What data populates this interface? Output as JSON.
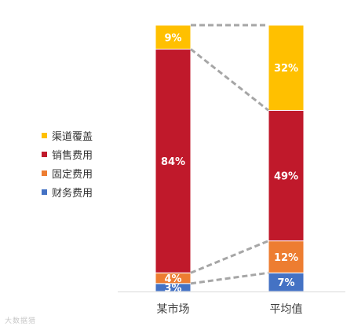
{
  "chart_data": {
    "type": "bar",
    "stacked": true,
    "categories": [
      "某市场",
      "平均值"
    ],
    "series": [
      {
        "name": "财务费用",
        "values": [
          3,
          7
        ],
        "labels": [
          "3%",
          "7%"
        ],
        "color": "#4472C4"
      },
      {
        "name": "固定费用",
        "values": [
          4,
          12
        ],
        "labels": [
          "4%",
          "12%"
        ],
        "color": "#ED7D31"
      },
      {
        "name": "销售费用",
        "values": [
          84,
          49
        ],
        "labels": [
          "84%",
          "49%"
        ],
        "color": "#C0192B"
      },
      {
        "name": "渠道覆盖",
        "values": [
          9,
          32
        ],
        "labels": [
          "9%",
          "32%"
        ],
        "color": "#FFC000"
      }
    ],
    "legend": {
      "position": "left",
      "order": [
        "渠道覆盖",
        "销售费用",
        "固定费用",
        "财务费用"
      ]
    },
    "connector_lines": "dashed",
    "ylim": [
      0,
      100
    ],
    "grid": false,
    "title": "",
    "xlabel": "",
    "ylabel": ""
  },
  "watermark": "大数据猎"
}
